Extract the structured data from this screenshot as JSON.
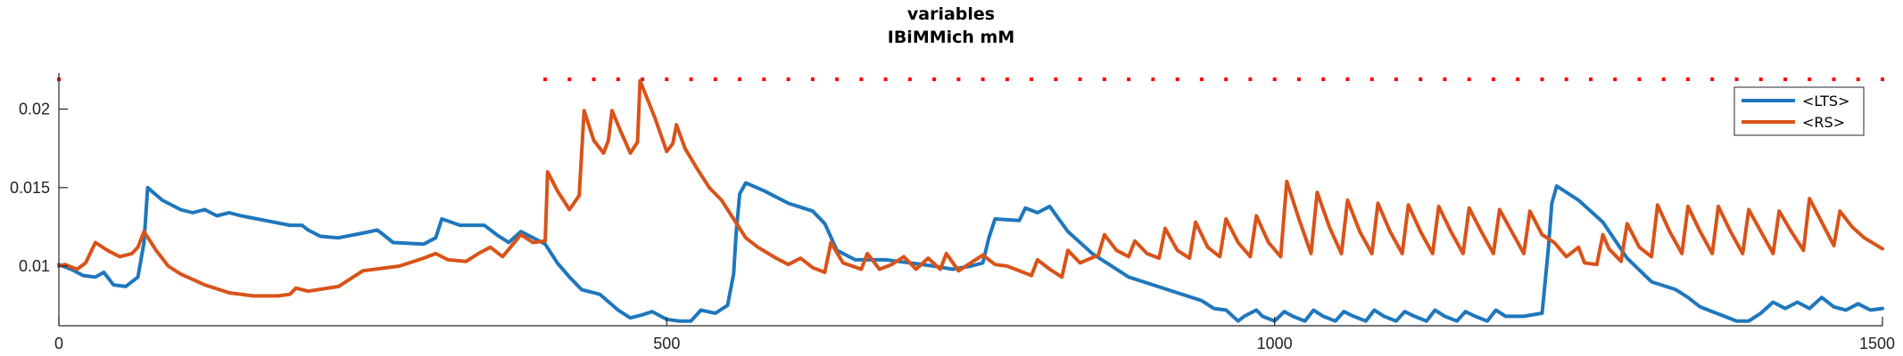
{
  "chart_data": {
    "type": "line",
    "title": "variables",
    "subtitle": "IBiMMich mM",
    "xlabel": "",
    "ylabel": "",
    "xlim": [
      0,
      1500
    ],
    "ylim": [
      0.0062,
      0.0223
    ],
    "xticks": [
      0,
      500,
      1000,
      1500
    ],
    "xtick_labels": [
      "0",
      "500",
      "1000",
      "1500"
    ],
    "yticks": [
      0.01,
      0.015,
      0.02
    ],
    "ytick_labels": [
      "0.01",
      "0.015",
      "0.02"
    ],
    "grid": false,
    "legend": {
      "placement": "top-right"
    },
    "colors": {
      "LTS": "#1f77bd",
      "RS": "#d95319",
      "markers": "#ff0000"
    },
    "series": [
      {
        "name": "<LTS>",
        "color": "#1f77bd",
        "points": [
          [
            0,
            0.0101
          ],
          [
            10,
            0.0098
          ],
          [
            20,
            0.0094
          ],
          [
            30,
            0.0093
          ],
          [
            37,
            0.0096
          ],
          [
            45,
            0.0088
          ],
          [
            55,
            0.0087
          ],
          [
            65,
            0.0093
          ],
          [
            70,
            0.0115
          ],
          [
            73,
            0.015
          ],
          [
            85,
            0.0142
          ],
          [
            100,
            0.0136
          ],
          [
            110,
            0.0134
          ],
          [
            120,
            0.0136
          ],
          [
            130,
            0.0132
          ],
          [
            140,
            0.0134
          ],
          [
            150,
            0.0132
          ],
          [
            170,
            0.0129
          ],
          [
            190,
            0.0126
          ],
          [
            200,
            0.0126
          ],
          [
            205,
            0.0123
          ],
          [
            215,
            0.0119
          ],
          [
            230,
            0.0118
          ],
          [
            250,
            0.0121
          ],
          [
            262,
            0.0123
          ],
          [
            275,
            0.0115
          ],
          [
            300,
            0.0114
          ],
          [
            310,
            0.0118
          ],
          [
            315,
            0.013
          ],
          [
            330,
            0.0126
          ],
          [
            350,
            0.0126
          ],
          [
            360,
            0.012
          ],
          [
            370,
            0.0115
          ],
          [
            380,
            0.0122
          ],
          [
            395,
            0.0116
          ],
          [
            400,
            0.0114
          ],
          [
            410,
            0.0102
          ],
          [
            420,
            0.0093
          ],
          [
            430,
            0.0085
          ],
          [
            445,
            0.0082
          ],
          [
            460,
            0.0072
          ],
          [
            470,
            0.0067
          ],
          [
            480,
            0.0069
          ],
          [
            488,
            0.0071
          ],
          [
            500,
            0.0066
          ],
          [
            510,
            0.0065
          ],
          [
            520,
            0.0065
          ],
          [
            528,
            0.0072
          ],
          [
            540,
            0.007
          ],
          [
            550,
            0.0075
          ],
          [
            555,
            0.0095
          ],
          [
            557,
            0.012
          ],
          [
            560,
            0.0146
          ],
          [
            565,
            0.0153
          ],
          [
            580,
            0.0148
          ],
          [
            600,
            0.014
          ],
          [
            620,
            0.0135
          ],
          [
            630,
            0.0127
          ],
          [
            640,
            0.011
          ],
          [
            655,
            0.0104
          ],
          [
            680,
            0.0104
          ],
          [
            700,
            0.0102
          ],
          [
            720,
            0.01
          ],
          [
            735,
            0.0098
          ],
          [
            750,
            0.01
          ],
          [
            760,
            0.0102
          ],
          [
            765,
            0.0118
          ],
          [
            770,
            0.013
          ],
          [
            790,
            0.0129
          ],
          [
            795,
            0.0137
          ],
          [
            805,
            0.0134
          ],
          [
            815,
            0.0138
          ],
          [
            830,
            0.0122
          ],
          [
            850,
            0.0108
          ],
          [
            880,
            0.0093
          ],
          [
            900,
            0.0088
          ],
          [
            920,
            0.0083
          ],
          [
            940,
            0.0078
          ],
          [
            950,
            0.0073
          ],
          [
            960,
            0.0072
          ],
          [
            970,
            0.0065
          ],
          [
            975,
            0.0068
          ],
          [
            985,
            0.0072
          ],
          [
            990,
            0.0068
          ],
          [
            1000,
            0.0065
          ],
          [
            1008,
            0.0071
          ],
          [
            1015,
            0.0068
          ],
          [
            1025,
            0.0065
          ],
          [
            1032,
            0.0072
          ],
          [
            1040,
            0.0068
          ],
          [
            1050,
            0.0065
          ],
          [
            1057,
            0.0071
          ],
          [
            1065,
            0.0068
          ],
          [
            1075,
            0.0065
          ],
          [
            1082,
            0.0072
          ],
          [
            1090,
            0.0068
          ],
          [
            1100,
            0.0065
          ],
          [
            1107,
            0.0071
          ],
          [
            1115,
            0.0068
          ],
          [
            1125,
            0.0065
          ],
          [
            1132,
            0.0072
          ],
          [
            1140,
            0.0068
          ],
          [
            1150,
            0.0065
          ],
          [
            1157,
            0.0071
          ],
          [
            1165,
            0.0068
          ],
          [
            1175,
            0.0065
          ],
          [
            1182,
            0.0072
          ],
          [
            1190,
            0.0068
          ],
          [
            1205,
            0.0068
          ],
          [
            1220,
            0.007
          ],
          [
            1225,
            0.011
          ],
          [
            1228,
            0.014
          ],
          [
            1232,
            0.0151
          ],
          [
            1250,
            0.0142
          ],
          [
            1270,
            0.0128
          ],
          [
            1290,
            0.0105
          ],
          [
            1310,
            0.009
          ],
          [
            1330,
            0.0085
          ],
          [
            1340,
            0.008
          ],
          [
            1350,
            0.0074
          ],
          [
            1360,
            0.0071
          ],
          [
            1370,
            0.0068
          ],
          [
            1380,
            0.0065
          ],
          [
            1390,
            0.0065
          ],
          [
            1400,
            0.007
          ],
          [
            1410,
            0.0077
          ],
          [
            1420,
            0.0073
          ],
          [
            1430,
            0.0077
          ],
          [
            1440,
            0.0073
          ],
          [
            1450,
            0.008
          ],
          [
            1460,
            0.0074
          ],
          [
            1470,
            0.0072
          ],
          [
            1480,
            0.0076
          ],
          [
            1490,
            0.0072
          ],
          [
            1500,
            0.0073
          ]
        ]
      },
      {
        "name": "<RS>",
        "color": "#d95319",
        "points": [
          [
            0,
            0.01
          ],
          [
            5,
            0.0101
          ],
          [
            15,
            0.0098
          ],
          [
            22,
            0.0102
          ],
          [
            30,
            0.0115
          ],
          [
            40,
            0.011
          ],
          [
            50,
            0.0106
          ],
          [
            60,
            0.0108
          ],
          [
            65,
            0.0112
          ],
          [
            70,
            0.0122
          ],
          [
            80,
            0.011
          ],
          [
            90,
            0.01
          ],
          [
            100,
            0.0095
          ],
          [
            120,
            0.0088
          ],
          [
            140,
            0.0083
          ],
          [
            160,
            0.0081
          ],
          [
            180,
            0.0081
          ],
          [
            190,
            0.0082
          ],
          [
            195,
            0.0086
          ],
          [
            205,
            0.0084
          ],
          [
            230,
            0.0087
          ],
          [
            250,
            0.0097
          ],
          [
            260,
            0.0098
          ],
          [
            280,
            0.01
          ],
          [
            300,
            0.0105
          ],
          [
            310,
            0.0108
          ],
          [
            320,
            0.0104
          ],
          [
            335,
            0.0103
          ],
          [
            345,
            0.0108
          ],
          [
            355,
            0.0112
          ],
          [
            365,
            0.0106
          ],
          [
            380,
            0.012
          ],
          [
            390,
            0.0115
          ],
          [
            400,
            0.0116
          ],
          [
            402,
            0.016
          ],
          [
            410,
            0.0148
          ],
          [
            420,
            0.0136
          ],
          [
            428,
            0.0145
          ],
          [
            432,
            0.0199
          ],
          [
            440,
            0.018
          ],
          [
            448,
            0.0172
          ],
          [
            452,
            0.018
          ],
          [
            455,
            0.0199
          ],
          [
            462,
            0.0186
          ],
          [
            470,
            0.0172
          ],
          [
            476,
            0.0179
          ],
          [
            478,
            0.0218
          ],
          [
            490,
            0.0195
          ],
          [
            500,
            0.0173
          ],
          [
            505,
            0.0178
          ],
          [
            508,
            0.019
          ],
          [
            515,
            0.0175
          ],
          [
            525,
            0.0162
          ],
          [
            535,
            0.015
          ],
          [
            545,
            0.0142
          ],
          [
            555,
            0.013
          ],
          [
            565,
            0.0118
          ],
          [
            575,
            0.0112
          ],
          [
            590,
            0.0105
          ],
          [
            600,
            0.0101
          ],
          [
            610,
            0.0105
          ],
          [
            620,
            0.0099
          ],
          [
            630,
            0.0096
          ],
          [
            635,
            0.0115
          ],
          [
            645,
            0.0102
          ],
          [
            660,
            0.0098
          ],
          [
            665,
            0.0108
          ],
          [
            675,
            0.0098
          ],
          [
            685,
            0.0101
          ],
          [
            695,
            0.0106
          ],
          [
            705,
            0.0098
          ],
          [
            715,
            0.0105
          ],
          [
            725,
            0.0098
          ],
          [
            730,
            0.0108
          ],
          [
            740,
            0.0097
          ],
          [
            750,
            0.0102
          ],
          [
            760,
            0.0107
          ],
          [
            770,
            0.0101
          ],
          [
            780,
            0.01
          ],
          [
            790,
            0.0097
          ],
          [
            800,
            0.0094
          ],
          [
            805,
            0.0104
          ],
          [
            815,
            0.0098
          ],
          [
            825,
            0.0093
          ],
          [
            830,
            0.011
          ],
          [
            840,
            0.0102
          ],
          [
            855,
            0.0107
          ],
          [
            860,
            0.012
          ],
          [
            870,
            0.011
          ],
          [
            880,
            0.0106
          ],
          [
            885,
            0.0116
          ],
          [
            895,
            0.0108
          ],
          [
            905,
            0.0105
          ],
          [
            910,
            0.0124
          ],
          [
            920,
            0.011
          ],
          [
            930,
            0.0105
          ],
          [
            935,
            0.0128
          ],
          [
            945,
            0.0112
          ],
          [
            955,
            0.0106
          ],
          [
            960,
            0.013
          ],
          [
            970,
            0.0115
          ],
          [
            980,
            0.0106
          ],
          [
            985,
            0.0132
          ],
          [
            995,
            0.0115
          ],
          [
            1005,
            0.0106
          ],
          [
            1010,
            0.0154
          ],
          [
            1020,
            0.013
          ],
          [
            1030,
            0.0108
          ],
          [
            1035,
            0.0147
          ],
          [
            1045,
            0.0125
          ],
          [
            1055,
            0.0108
          ],
          [
            1060,
            0.0142
          ],
          [
            1070,
            0.0122
          ],
          [
            1080,
            0.0108
          ],
          [
            1085,
            0.014
          ],
          [
            1095,
            0.0122
          ],
          [
            1105,
            0.0108
          ],
          [
            1110,
            0.0139
          ],
          [
            1120,
            0.0122
          ],
          [
            1130,
            0.0108
          ],
          [
            1135,
            0.0138
          ],
          [
            1145,
            0.0122
          ],
          [
            1155,
            0.0108
          ],
          [
            1160,
            0.0137
          ],
          [
            1170,
            0.0122
          ],
          [
            1180,
            0.0108
          ],
          [
            1185,
            0.0136
          ],
          [
            1195,
            0.0122
          ],
          [
            1205,
            0.0108
          ],
          [
            1210,
            0.0135
          ],
          [
            1220,
            0.012
          ],
          [
            1230,
            0.0115
          ],
          [
            1240,
            0.0106
          ],
          [
            1250,
            0.0112
          ],
          [
            1255,
            0.0102
          ],
          [
            1265,
            0.0101
          ],
          [
            1270,
            0.012
          ],
          [
            1275,
            0.0111
          ],
          [
            1285,
            0.0103
          ],
          [
            1290,
            0.0127
          ],
          [
            1300,
            0.0112
          ],
          [
            1310,
            0.0106
          ],
          [
            1315,
            0.0139
          ],
          [
            1325,
            0.0122
          ],
          [
            1335,
            0.0108
          ],
          [
            1340,
            0.0138
          ],
          [
            1350,
            0.0122
          ],
          [
            1360,
            0.0108
          ],
          [
            1365,
            0.0138
          ],
          [
            1375,
            0.0122
          ],
          [
            1385,
            0.0108
          ],
          [
            1390,
            0.0136
          ],
          [
            1400,
            0.0122
          ],
          [
            1410,
            0.0108
          ],
          [
            1415,
            0.0135
          ],
          [
            1425,
            0.0122
          ],
          [
            1435,
            0.011
          ],
          [
            1440,
            0.0143
          ],
          [
            1450,
            0.0128
          ],
          [
            1460,
            0.0113
          ],
          [
            1465,
            0.0135
          ],
          [
            1475,
            0.0125
          ],
          [
            1485,
            0.0118
          ],
          [
            1500,
            0.0111
          ]
        ]
      }
    ],
    "markers": {
      "y": 0.0219,
      "x": [
        0,
        400,
        420,
        440,
        460,
        480,
        500,
        520,
        540,
        560,
        580,
        600,
        620,
        640,
        660,
        680,
        700,
        720,
        740,
        760,
        780,
        800,
        820,
        840,
        860,
        880,
        900,
        920,
        940,
        960,
        980,
        1000,
        1020,
        1040,
        1060,
        1080,
        1100,
        1120,
        1140,
        1160,
        1180,
        1200,
        1220,
        1240,
        1260,
        1280,
        1300,
        1320,
        1340,
        1360,
        1380,
        1400,
        1420,
        1440,
        1460,
        1480,
        1500
      ]
    }
  }
}
